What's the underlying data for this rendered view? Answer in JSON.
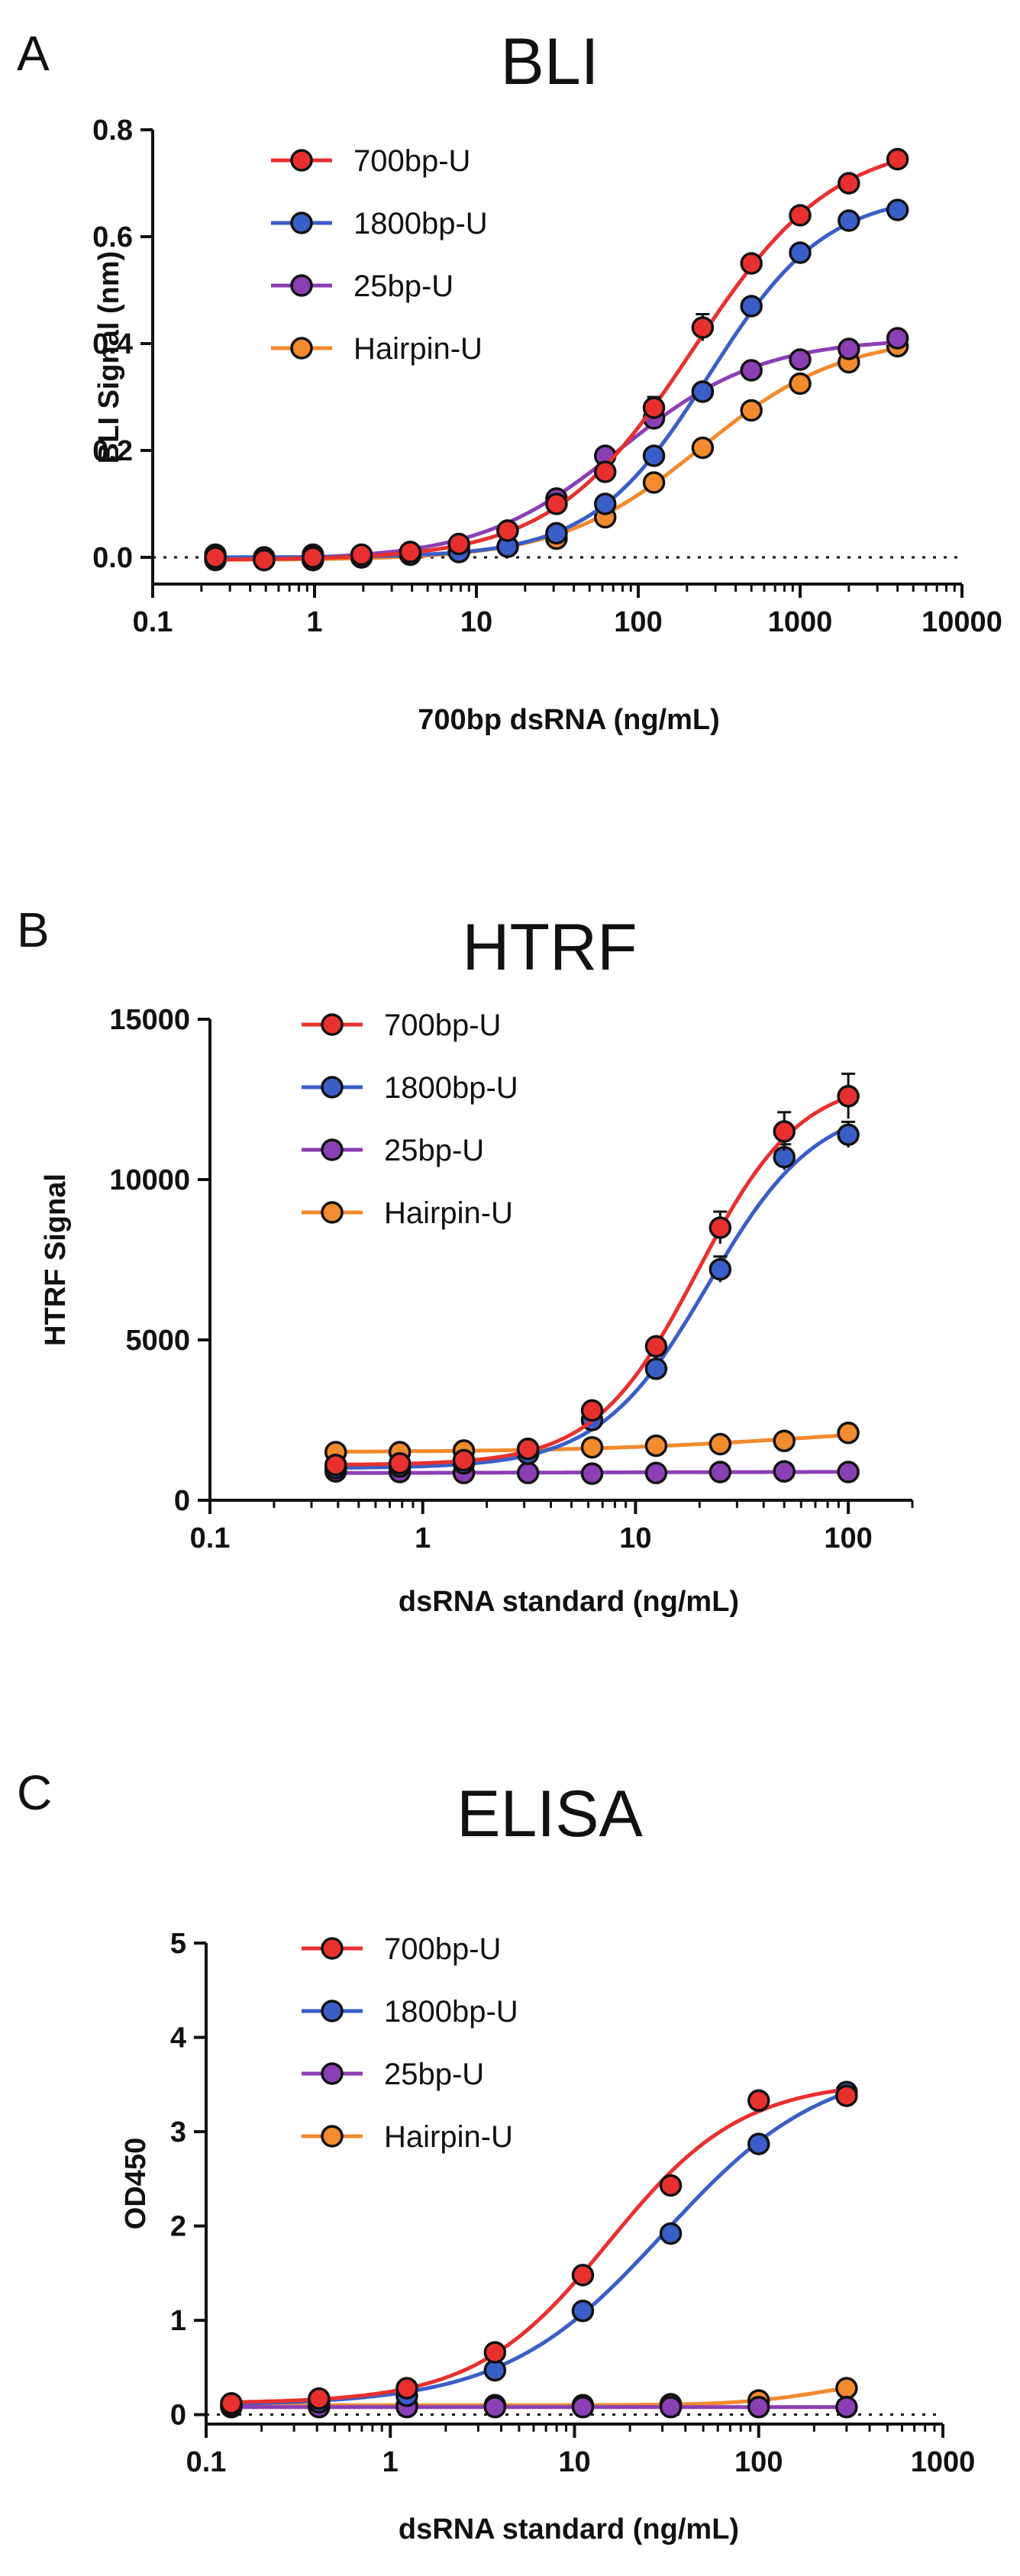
{
  "colors": {
    "700bp-U": "#e8302f",
    "1800bp-U": "#3a5ec8",
    "25bp-U": "#8b3fb5",
    "Hairpin-U": "#f28a2e"
  },
  "chart_data": [
    {
      "panel": "A",
      "type": "scatter",
      "title": "BLI",
      "xlabel": "700bp dsRNA (ng/mL)",
      "ylabel": "BLI Signal (nm)",
      "x_scale": "log",
      "xlim": [
        0.1,
        10000
      ],
      "ylim": [
        -0.05,
        0.8
      ],
      "x_ticks": [
        0.1,
        1,
        10,
        100,
        1000,
        10000
      ],
      "x_tick_labels": [
        "0.1",
        "1",
        "10",
        "100",
        "1000",
        "10000"
      ],
      "y_ticks": [
        0,
        0.2,
        0.4,
        0.6,
        0.8
      ],
      "y_tick_labels": [
        "0.0",
        "0.2",
        "0.4",
        "0.6",
        "0.8"
      ],
      "baseline_dotted": 0,
      "legend_position": "top-left",
      "x": [
        0.244,
        0.488,
        0.977,
        1.95,
        3.9,
        7.8,
        15.6,
        31.25,
        62.5,
        125,
        250,
        500,
        1000,
        2000,
        4000
      ],
      "series": [
        {
          "name": "700bp-U",
          "values": [
            0.0,
            -0.005,
            0.0,
            0.005,
            0.01,
            0.025,
            0.05,
            0.1,
            0.16,
            0.28,
            0.43,
            0.55,
            0.64,
            0.7,
            0.745
          ],
          "errors": [
            0.008,
            0.006,
            0.006,
            0.006,
            0.006,
            0.008,
            0.01,
            0.012,
            0.015,
            0.02,
            0.025,
            0.012,
            0.01,
            0.01,
            0.008
          ]
        },
        {
          "name": "1800bp-U",
          "values": [
            0.005,
            0.0,
            0.005,
            0.0,
            0.005,
            0.01,
            0.02,
            0.045,
            0.1,
            0.19,
            0.31,
            0.47,
            0.57,
            0.63,
            0.65
          ],
          "errors": [
            0.005,
            0.005,
            0.005,
            0.005,
            0.005,
            0.006,
            0.006,
            0.008,
            0.01,
            0.012,
            0.012,
            0.012,
            0.01,
            0.01,
            0.01
          ]
        },
        {
          "name": "25bp-U",
          "values": [
            0.0,
            -0.005,
            -0.005,
            0.0,
            0.01,
            0.02,
            0.05,
            0.11,
            0.19,
            0.26,
            0.31,
            0.35,
            0.37,
            0.39,
            0.41
          ],
          "errors": [
            0.005,
            0.005,
            0.005,
            0.005,
            0.005,
            0.006,
            0.006,
            0.01,
            0.012,
            0.012,
            0.012,
            0.01,
            0.01,
            0.01,
            0.01
          ]
        },
        {
          "name": "Hairpin-U",
          "values": [
            -0.005,
            -0.005,
            -0.005,
            0.0,
            0.005,
            0.01,
            0.02,
            0.035,
            0.075,
            0.14,
            0.205,
            0.275,
            0.325,
            0.365,
            0.395
          ],
          "errors": [
            0.005,
            0.005,
            0.005,
            0.005,
            0.005,
            0.005,
            0.006,
            0.006,
            0.008,
            0.008,
            0.008,
            0.008,
            0.008,
            0.008,
            0.01
          ]
        }
      ]
    },
    {
      "panel": "B",
      "type": "scatter",
      "title": "HTRF",
      "xlabel": "dsRNA standard (ng/mL)",
      "ylabel": "HTRF Signal",
      "x_scale": "log",
      "xlim": [
        0.1,
        200
      ],
      "ylim": [
        0,
        15000
      ],
      "x_ticks": [
        0.1,
        1,
        10,
        100
      ],
      "x_tick_labels": [
        "0.1",
        "1",
        "10",
        "100"
      ],
      "y_ticks": [
        0,
        5000,
        10000,
        15000
      ],
      "y_tick_labels": [
        "0",
        "5000",
        "10000",
        "15000"
      ],
      "legend_position": "top-left",
      "x": [
        0.39,
        0.78,
        1.56,
        3.125,
        6.25,
        12.5,
        25,
        50,
        100
      ],
      "series": [
        {
          "name": "700bp-U",
          "values": [
            1100,
            1150,
            1250,
            1600,
            2800,
            4800,
            8500,
            11500,
            12600
          ],
          "errors": [
            80,
            80,
            80,
            100,
            150,
            200,
            500,
            600,
            700
          ]
        },
        {
          "name": "1800bp-U",
          "values": [
            1000,
            1050,
            1150,
            1450,
            2500,
            4100,
            7200,
            10700,
            11400
          ],
          "errors": [
            80,
            80,
            80,
            100,
            150,
            200,
            400,
            400,
            400
          ]
        },
        {
          "name": "25bp-U",
          "values": [
            900,
            880,
            850,
            850,
            830,
            850,
            880,
            900,
            880
          ],
          "errors": [
            50,
            50,
            50,
            50,
            50,
            50,
            50,
            50,
            50
          ]
        },
        {
          "name": "Hairpin-U",
          "values": [
            1500,
            1500,
            1550,
            1600,
            1650,
            1700,
            1750,
            1850,
            2100
          ],
          "errors": [
            60,
            60,
            60,
            60,
            60,
            60,
            60,
            60,
            80
          ]
        }
      ]
    },
    {
      "panel": "C",
      "type": "scatter",
      "title": "ELISA",
      "xlabel": "dsRNA standard (ng/mL)",
      "ylabel": "OD450",
      "x_scale": "log",
      "xlim": [
        0.1,
        1000
      ],
      "ylim": [
        -0.1,
        5
      ],
      "x_ticks": [
        0.1,
        1,
        10,
        100,
        1000
      ],
      "x_tick_labels": [
        "0.1",
        "1",
        "10",
        "100",
        "1000"
      ],
      "y_ticks": [
        0,
        1,
        2,
        3,
        4,
        5
      ],
      "y_tick_labels": [
        "0",
        "1",
        "2",
        "3",
        "4",
        "5"
      ],
      "baseline_dotted": 0,
      "legend_position": "top-left",
      "x": [
        0.137,
        0.41,
        1.23,
        3.7,
        11.1,
        33.3,
        100,
        300
      ],
      "series": [
        {
          "name": "700bp-U",
          "values": [
            0.12,
            0.17,
            0.28,
            0.66,
            1.48,
            2.43,
            3.33,
            3.38
          ],
          "errors": [
            0.02,
            0.02,
            0.03,
            0.04,
            0.05,
            0.05,
            0.05,
            0.05
          ]
        },
        {
          "name": "1800bp-U",
          "values": [
            0.1,
            0.13,
            0.2,
            0.47,
            1.1,
            1.92,
            2.87,
            3.42
          ],
          "errors": [
            0.02,
            0.02,
            0.02,
            0.03,
            0.04,
            0.04,
            0.05,
            0.05
          ]
        },
        {
          "name": "25bp-U",
          "values": [
            0.08,
            0.08,
            0.08,
            0.08,
            0.08,
            0.08,
            0.08,
            0.08
          ],
          "errors": [
            0.01,
            0.01,
            0.01,
            0.01,
            0.01,
            0.01,
            0.01,
            0.01
          ]
        },
        {
          "name": "Hairpin-U",
          "values": [
            0.1,
            0.1,
            0.1,
            0.1,
            0.1,
            0.11,
            0.15,
            0.28
          ],
          "errors": [
            0.01,
            0.01,
            0.01,
            0.01,
            0.01,
            0.01,
            0.02,
            0.03
          ]
        }
      ]
    }
  ]
}
